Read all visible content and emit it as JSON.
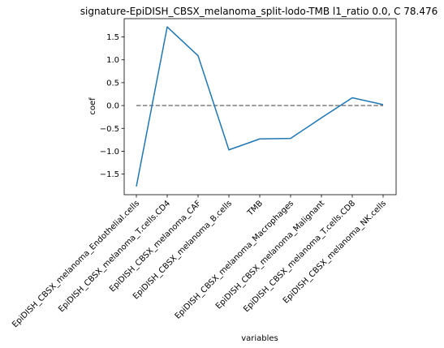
{
  "chart_data": {
    "type": "line",
    "title": "signature-EpiDISH_CBSX_melanoma_split-lodo-TMB l1_ratio 0.0, C 78.476",
    "xlabel": "variables",
    "ylabel": "coef",
    "categories": [
      "EpiDISH_CBSX_melanoma_Endothelial.cells",
      "EpiDISH_CBSX_melanoma_T.cells.CD4",
      "EpiDISH_CBSX_melanoma_CAF",
      "EpiDISH_CBSX_melanoma_B.cells",
      "TMB",
      "EpiDISH_CBSX_melanoma_Macrophages",
      "EpiDISH_CBSX_melanoma_Malignant",
      "EpiDISH_CBSX_melanoma_T.cells.CD8",
      "EpiDISH_CBSX_melanoma_NK.cells"
    ],
    "series": [
      {
        "values": [
          -1.77,
          1.72,
          1.09,
          -0.97,
          -0.73,
          -0.72,
          -0.27,
          0.17,
          0.02
        ]
      }
    ],
    "reference_line": {
      "y": 0.0,
      "style": "dashed",
      "color": "#808080"
    },
    "yticks": [
      -1.5,
      -1.0,
      -0.5,
      0.0,
      0.5,
      1.0,
      1.5
    ],
    "ytick_labels": [
      "−1.5",
      "−1.0",
      "−0.5",
      "0.0",
      "0.5",
      "1.0",
      "1.5"
    ],
    "ylim": [
      -1.95,
      1.9
    ],
    "grid": false,
    "line_color": "#1f77b4"
  }
}
